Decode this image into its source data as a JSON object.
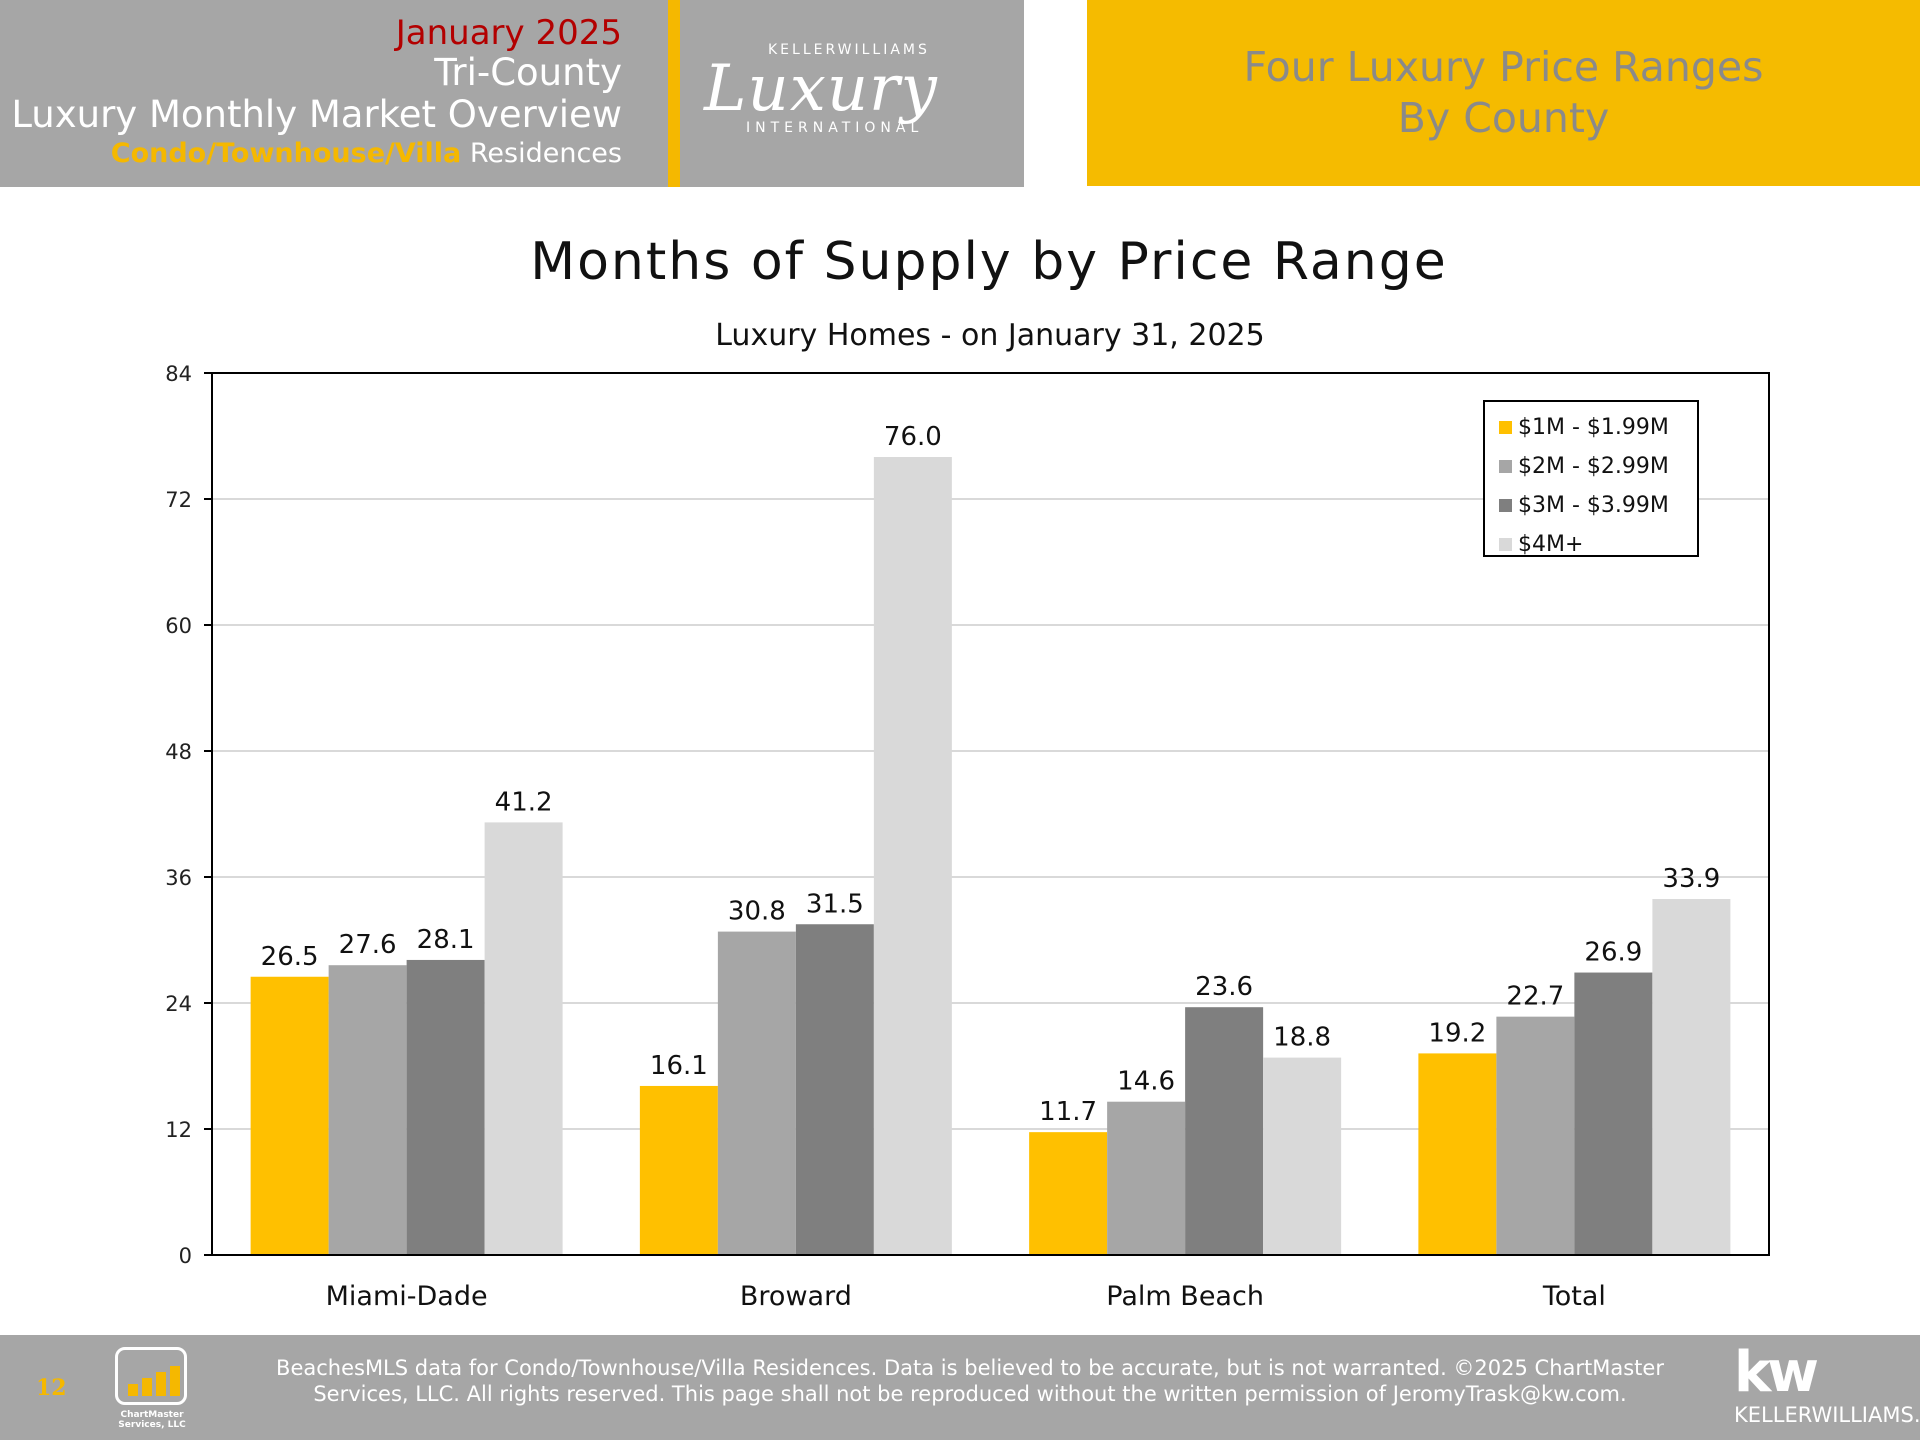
{
  "header": {
    "month": "January 2025",
    "region": "Tri-County",
    "report": "Luxury Monthly Market Overview",
    "type_highlight": "Condo/Townhouse/Villa",
    "type_rest": "Residences",
    "logo_top": "KELLERWILLIAMS",
    "logo_main": "Luxury",
    "logo_bottom": "INTERNATIONAL",
    "right_title_line1": "Four Luxury Price Ranges",
    "right_title_line2": "By County"
  },
  "chart_data": {
    "type": "bar",
    "title": "Months of Supply by Price Range",
    "subtitle": "Luxury Homes - on January 31, 2025",
    "categories": [
      "Miami-Dade",
      "Broward",
      "Palm Beach",
      "Total"
    ],
    "series": [
      {
        "name": "$1M - $1.99M",
        "color": "#ffc000",
        "values": [
          26.5,
          16.1,
          11.7,
          19.2
        ]
      },
      {
        "name": "$2M - $2.99M",
        "color": "#a6a6a6",
        "values": [
          27.6,
          30.8,
          14.6,
          22.7
        ]
      },
      {
        "name": "$3M - $3.99M",
        "color": "#7f7f7f",
        "values": [
          28.1,
          31.5,
          23.6,
          26.9
        ]
      },
      {
        "name": "$4M+",
        "color": "#d9d9d9",
        "values": [
          41.2,
          76.0,
          18.8,
          33.9
        ]
      }
    ],
    "ylim": [
      0,
      84
    ],
    "yticks": [
      0,
      12,
      24,
      36,
      48,
      60,
      72,
      84
    ],
    "grid": true,
    "legend": "top-right"
  },
  "footer": {
    "page": "12",
    "icon_label_line1": "ChartMaster",
    "icon_label_line2": "Services, LLC",
    "disclaimer_line1": "BeachesMLS data for Condo/Townhouse/Villa Residences.  Data is believed to be accurate, but is not warranted.   ©2025  ChartMaster",
    "disclaimer_line2": "Services, LLC.  All rights reserved. This page shall not be reproduced without the written permission of JeromyTrask@kw.com.",
    "kw_big": "kw",
    "kw_small": "KELLERWILLIAMS."
  }
}
